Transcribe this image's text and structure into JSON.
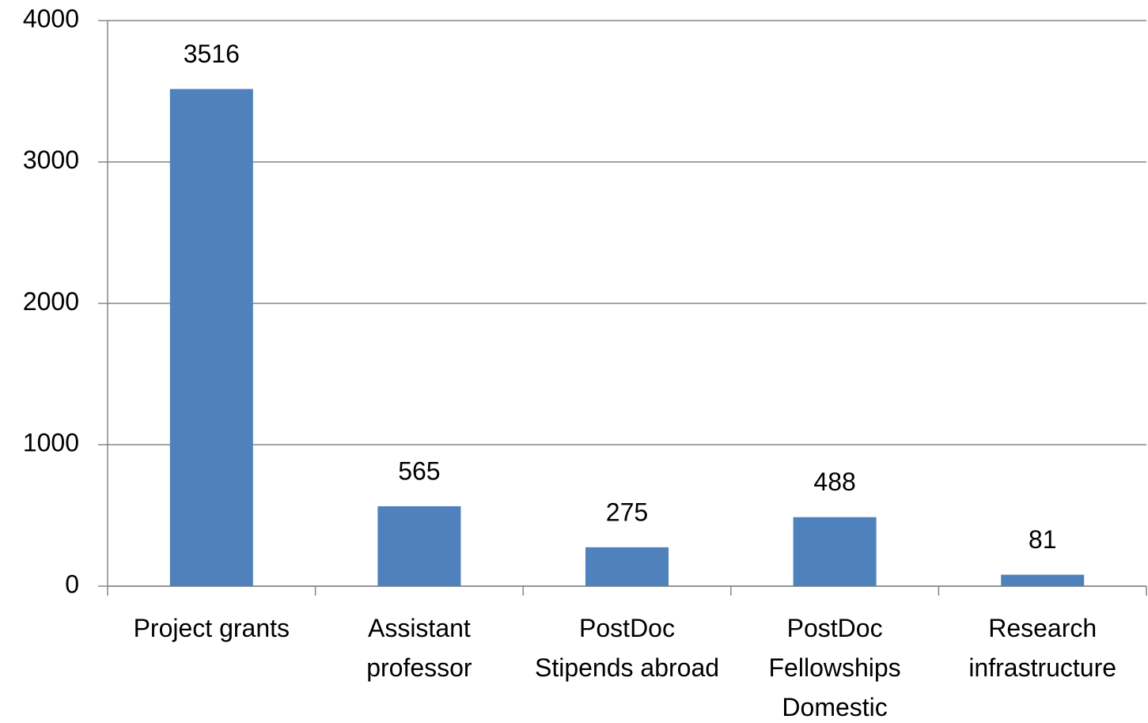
{
  "chart_data": {
    "type": "bar",
    "categories": [
      "Project grants",
      "Assistant professor",
      "PostDoc Stipends abroad",
      "PostDoc Fellowships Domestic",
      "Research infrastructure"
    ],
    "values": [
      3516,
      565,
      275,
      488,
      81
    ],
    "color": "#4f81bd",
    "ylim": [
      0,
      4000
    ],
    "yticks": [
      0,
      1000,
      2000,
      3000,
      4000
    ],
    "grid": true
  }
}
